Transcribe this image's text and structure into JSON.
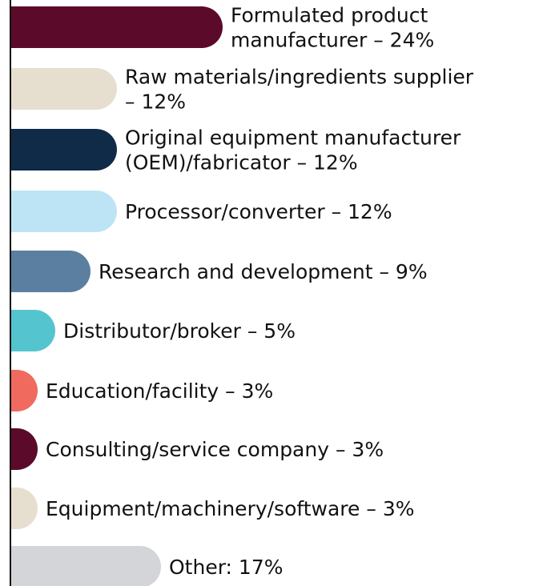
{
  "chart_data": {
    "type": "bar",
    "orientation": "horizontal",
    "categories": [
      [
        "Formulated product",
        "manufacturer – 24%"
      ],
      [
        "Raw materials/ingredients supplier",
        "– 12%"
      ],
      [
        "Original equipment manufacturer",
        "(OEM)/fabricator – 12%"
      ],
      [
        "Processor/converter – 12%"
      ],
      [
        "Research and development – 9%"
      ],
      [
        "Distributor/broker – 5%"
      ],
      [
        "Education/facility – 3%"
      ],
      [
        "Consulting/service company – 3%"
      ],
      [
        "Equipment/machinery/software – 3%"
      ],
      [
        "Other: 17%"
      ]
    ],
    "values": [
      24,
      12,
      12,
      12,
      9,
      5,
      3,
      3,
      3,
      17
    ],
    "colors": [
      "#5b0a2a",
      "#e6dfcf",
      "#102b47",
      "#bde4f5",
      "#5b7fa1",
      "#54c5cf",
      "#f06a5e",
      "#5b0a2a",
      "#e6dfcf",
      "#d4d5d8"
    ],
    "grid": false,
    "legend": "none"
  }
}
